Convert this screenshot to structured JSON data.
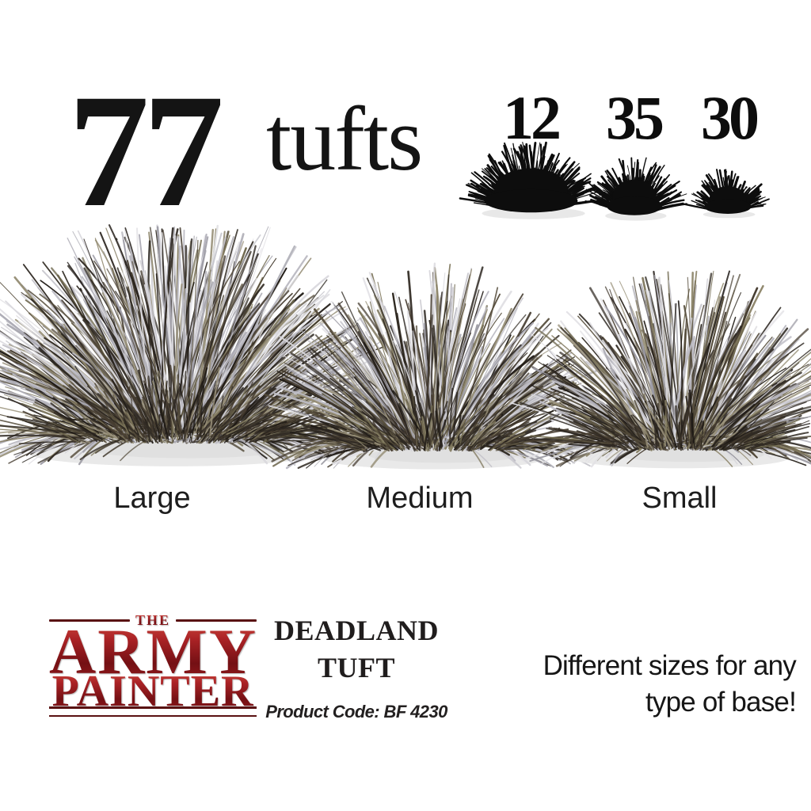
{
  "header": {
    "total_count": "77",
    "total_unit": "tufts"
  },
  "size_counts": [
    {
      "count": "12",
      "label": "Large"
    },
    {
      "count": "35",
      "label": "Medium"
    },
    {
      "count": "30",
      "label": "Small"
    }
  ],
  "brand": {
    "line_the": "THE",
    "line_army": "ARMY",
    "line_painter": "PAINTER",
    "accent_color": "#9a1b1d"
  },
  "product": {
    "title_line1": "DEADLAND",
    "title_line2": "TUFT",
    "product_code": "Product Code: BF 4230"
  },
  "tagline": {
    "line1": "Different sizes for any",
    "line2": "type of base!"
  },
  "palette": {
    "background": "#ffffff",
    "text": "#1a1a1a",
    "grass_light": "#c3c2c9",
    "grass_dark": "#2e2822",
    "grass_olive": "#8a8266",
    "silhouette": "#0d0d0d",
    "shadow": "#e9e9e9"
  }
}
